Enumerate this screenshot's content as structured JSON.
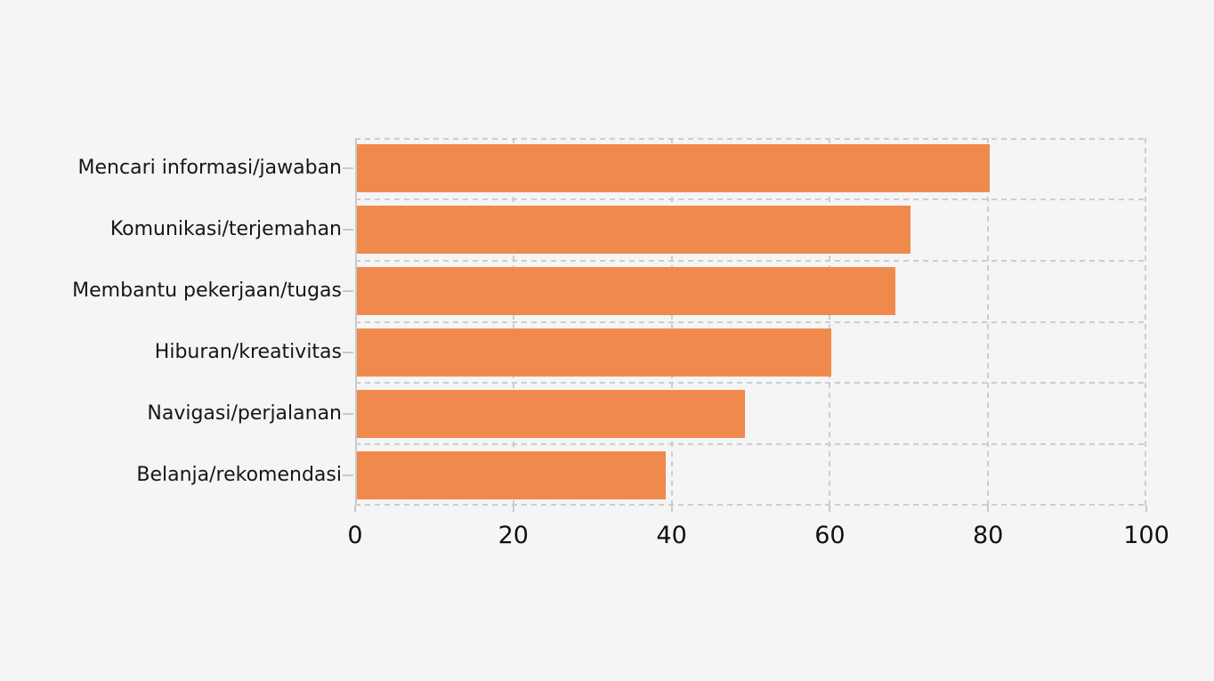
{
  "colors": {
    "background": "#f5f5f6",
    "bar": "#f08a4c",
    "gridline": "#cdcdd0",
    "axis_line": "#c9c9cc",
    "text": "#161616"
  },
  "chart_data": {
    "type": "bar",
    "orientation": "horizontal",
    "title": "",
    "xlabel": "",
    "ylabel": "",
    "categories": [
      "Mencari informasi/jawaban",
      "Komunikasi/terjemahan",
      "Membantu pekerjaan/tugas",
      "Hiburan/kreativitas",
      "Navigasi/perjalanan",
      "Belanja/rekomendasi"
    ],
    "values": [
      80,
      70,
      68,
      60,
      49,
      39
    ],
    "xlim": [
      0,
      100
    ],
    "xticks": [
      0,
      20,
      40,
      60,
      80,
      100
    ],
    "grid": "dashed",
    "legend_position": "none"
  }
}
